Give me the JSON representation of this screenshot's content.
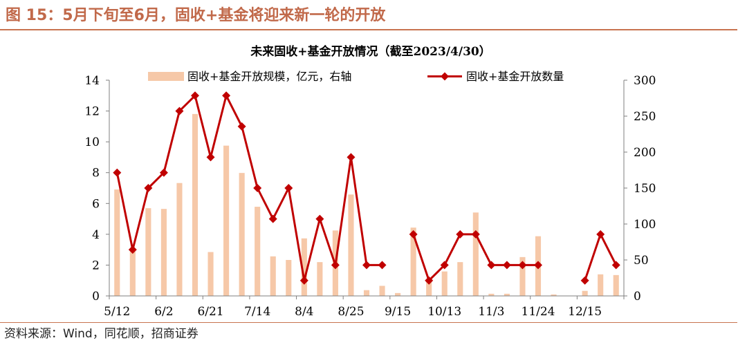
{
  "figure": {
    "title": "图 15：5月下旬至6月，固收+基金将迎来新一轮的开放",
    "source": "资料来源：Wind，同花顺，招商证券"
  },
  "colors": {
    "bar": "#f6c8a8",
    "line": "#c00000",
    "rule": "#c8734f",
    "title": "#c1694a"
  },
  "chart_data": {
    "type": "bar+line",
    "title": "未来固收+基金开放情况（截至2023/4/30）",
    "x_tick_labels": [
      "5/12",
      "6/2",
      "6/21",
      "7/14",
      "8/4",
      "8/25",
      "9/15",
      "10/13",
      "11/3",
      "11/24",
      "12/15"
    ],
    "legend_position": "top",
    "grid": false,
    "x_index_range": [
      0,
      32
    ],
    "y_left": {
      "range": [
        0,
        14
      ],
      "ticks": [
        0,
        2,
        4,
        6,
        8,
        10,
        12,
        14
      ]
    },
    "y_right": {
      "range": [
        0,
        300
      ],
      "ticks": [
        0,
        50,
        100,
        150,
        200,
        250,
        300
      ]
    },
    "series": [
      {
        "name": "固收+基金开放规模，亿元，右轴",
        "kind": "bar",
        "axis": "right",
        "points": [
          [
            0,
            148
          ],
          [
            1,
            66
          ],
          [
            2,
            122
          ],
          [
            3,
            121
          ],
          [
            4,
            157
          ],
          [
            5,
            253
          ],
          [
            6,
            61
          ],
          [
            7,
            209
          ],
          [
            8,
            171
          ],
          [
            9,
            124
          ],
          [
            10,
            55
          ],
          [
            11,
            50
          ],
          [
            12,
            80
          ],
          [
            13,
            47
          ],
          [
            14,
            91
          ],
          [
            15,
            141
          ],
          [
            16,
            8
          ],
          [
            17,
            14
          ],
          [
            18,
            4
          ],
          [
            19,
            95
          ],
          [
            20,
            21
          ],
          [
            21,
            34
          ],
          [
            22,
            47
          ],
          [
            23,
            116
          ],
          [
            24,
            3
          ],
          [
            25,
            3
          ],
          [
            26,
            54
          ],
          [
            27,
            83
          ],
          [
            28,
            2
          ],
          [
            30,
            7
          ],
          [
            31,
            30
          ],
          [
            32,
            29
          ]
        ]
      },
      {
        "name": "固收+基金开放数量",
        "kind": "line",
        "axis": "left",
        "points": [
          [
            0,
            8
          ],
          [
            1,
            3
          ],
          [
            2,
            7
          ],
          [
            3,
            8
          ],
          [
            4,
            12
          ],
          [
            5,
            13
          ],
          [
            6,
            9
          ],
          [
            7,
            13
          ],
          [
            8,
            11
          ],
          [
            9,
            7
          ],
          [
            10,
            5
          ],
          [
            11,
            7
          ],
          [
            12,
            1
          ],
          [
            13,
            5
          ],
          [
            14,
            2
          ],
          [
            15,
            9
          ],
          [
            16,
            2
          ],
          [
            17,
            2
          ],
          [
            19,
            4
          ],
          [
            20,
            1
          ],
          [
            21,
            2
          ],
          [
            22,
            4
          ],
          [
            23,
            4
          ],
          [
            24,
            2
          ],
          [
            25,
            2
          ],
          [
            26,
            2
          ],
          [
            27,
            2
          ],
          [
            30,
            1
          ],
          [
            31,
            4
          ],
          [
            32,
            2
          ]
        ]
      }
    ]
  }
}
